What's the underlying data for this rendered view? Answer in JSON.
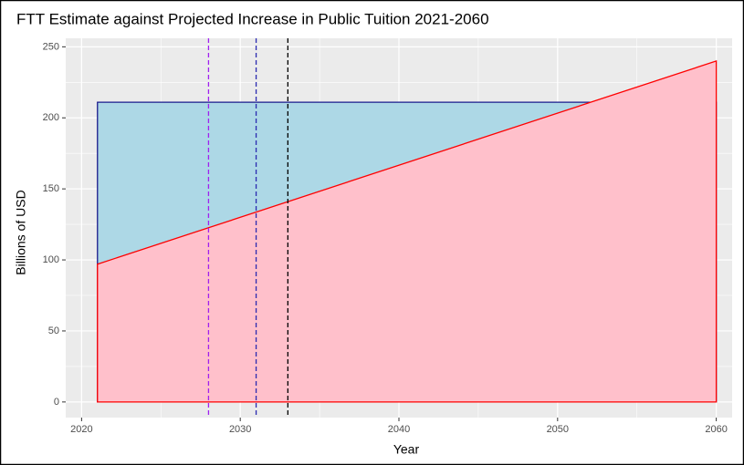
{
  "chart_data": {
    "type": "area",
    "title": "FTT Estimate against Projected Increase in Public Tuition 2021-2060",
    "x_label": "Year",
    "y_label": "Billions of USD",
    "x": [
      2021,
      2060
    ],
    "series": [
      {
        "color": "#1a1a8c",
        "fill": "#add8e6",
        "values": [
          211,
          211
        ]
      },
      {
        "color": "#ff0000",
        "fill": "#ffc0cb",
        "values": [
          97,
          240
        ]
      }
    ],
    "vlines": [
      {
        "x": 2028,
        "color": "#a020f0"
      },
      {
        "x": 2031,
        "color": "#2a2ab0"
      },
      {
        "x": 2033,
        "color": "#000000"
      }
    ],
    "xlim": [
      2019,
      2061
    ],
    "ylim": [
      -11,
      256
    ],
    "xticks": [
      2020,
      2030,
      2040,
      2050,
      2060
    ],
    "yticks": [
      0,
      50,
      100,
      150,
      200,
      250
    ],
    "grid": true,
    "minor_grid": true
  }
}
